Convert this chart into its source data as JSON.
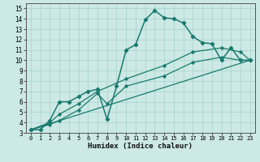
{
  "xlabel": "Humidex (Indice chaleur)",
  "bg_color": "#cce9e5",
  "grid_color": "#aed4d0",
  "line_color": "#1a7a6e",
  "xlim": [
    -0.5,
    23.5
  ],
  "ylim": [
    3,
    15.5
  ],
  "xticks": [
    0,
    1,
    2,
    3,
    4,
    5,
    6,
    7,
    8,
    9,
    10,
    11,
    12,
    13,
    14,
    15,
    16,
    17,
    18,
    19,
    20,
    21,
    22,
    23
  ],
  "yticks": [
    3,
    4,
    5,
    6,
    7,
    8,
    9,
    10,
    11,
    12,
    13,
    14,
    15
  ],
  "curve1_x": [
    0,
    1,
    2,
    3,
    4,
    5,
    6,
    7,
    8,
    9,
    10,
    11,
    12,
    13,
    14,
    15,
    16,
    17,
    18,
    19,
    20,
    21,
    22,
    23
  ],
  "curve1_y": [
    3.3,
    3.3,
    4.2,
    6.0,
    6.0,
    6.5,
    7.0,
    7.2,
    4.3,
    7.5,
    11.0,
    11.5,
    13.9,
    14.8,
    14.1,
    14.0,
    13.6,
    12.3,
    11.7,
    11.6,
    10.0,
    11.2,
    10.0,
    10.0
  ],
  "curve2_x": [
    0,
    2,
    3,
    5,
    7,
    8,
    10,
    14,
    17,
    20,
    22,
    23
  ],
  "curve2_y": [
    3.3,
    3.8,
    4.2,
    5.2,
    6.8,
    5.8,
    7.5,
    8.5,
    9.8,
    10.3,
    10.0,
    10.0
  ],
  "curve3_x": [
    0,
    2,
    3,
    5,
    7,
    10,
    14,
    17,
    20,
    22,
    23
  ],
  "curve3_y": [
    3.3,
    4.0,
    4.8,
    5.8,
    7.0,
    8.2,
    9.5,
    10.8,
    11.2,
    10.8,
    10.0
  ],
  "curve4_x": [
    0,
    23
  ],
  "curve4_y": [
    3.3,
    10.0
  ],
  "lw1": 1.1,
  "lw2": 0.9,
  "ms1": 2.2,
  "ms2": 1.8
}
